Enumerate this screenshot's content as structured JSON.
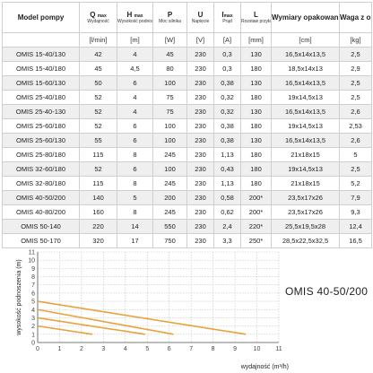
{
  "table": {
    "headers": {
      "model": "Model pompy",
      "q": {
        "sym": "Q",
        "sub": "max",
        "desc": "Wydajność"
      },
      "h": {
        "sym": "H",
        "sub": "max",
        "desc": "Wysokość podnoszenia"
      },
      "p": {
        "sym": "P",
        "sub": "",
        "desc": "Moc silnika"
      },
      "u": {
        "sym": "U",
        "sub": "",
        "desc": "Napięcie"
      },
      "i": {
        "sym": "I",
        "sub": "max",
        "desc": "Prąd"
      },
      "l": {
        "sym": "L",
        "sub": "",
        "desc": "Rozstaw przyłączy"
      },
      "dims": "Wymiary opakowania",
      "weight": "Waga z opak."
    },
    "units": [
      "[l/min]",
      "[m]",
      "[W]",
      "[V]",
      "[A]",
      "[mm]",
      "[cm]",
      "[kg]"
    ],
    "rows": [
      [
        "OMIS 15-40/130",
        "42",
        "4",
        "45",
        "230",
        "0,3",
        "130",
        "16,5x14x13,5",
        "2,5"
      ],
      [
        "OMIS 15-40/180",
        "45",
        "4,5",
        "80",
        "230",
        "0,3",
        "180",
        "18,5x14x13",
        "2,9"
      ],
      [
        "OMIS 15-60/130",
        "50",
        "6",
        "100",
        "230",
        "0,38",
        "130",
        "16,5x14x13,5",
        "2,5"
      ],
      [
        "OMIS 25-40/180",
        "52",
        "4",
        "75",
        "230",
        "0,32",
        "180",
        "19x14,5x13",
        "2,5"
      ],
      [
        "OMIS 25-40-130",
        "52",
        "4",
        "75",
        "230",
        "0,32",
        "130",
        "16,5x14x13,5",
        "2,6"
      ],
      [
        "OMIS 25-60/180",
        "52",
        "6",
        "100",
        "230",
        "0,38",
        "180",
        "19x14,5x13",
        "2,53"
      ],
      [
        "OMIS 25-60/130",
        "55",
        "6",
        "100",
        "230",
        "0,38",
        "130",
        "16,5x14x13,5",
        "2,6"
      ],
      [
        "OMIS 25-80/180",
        "115",
        "8",
        "245",
        "230",
        "1,13",
        "180",
        "21x18x15",
        "5"
      ],
      [
        "OMIS 32-60/180",
        "52",
        "6",
        "100",
        "230",
        "0,43",
        "180",
        "19x14,5x13",
        "2,5"
      ],
      [
        "OMIS 32-80/180",
        "115",
        "8",
        "245",
        "230",
        "1,13",
        "180",
        "21x18x15",
        "5,2"
      ],
      [
        "OMIS 40-50/200",
        "140",
        "5",
        "200",
        "230",
        "0,58",
        "200*",
        "23,5x17x26",
        "7,9"
      ],
      [
        "OMIS 40-80/200",
        "160",
        "8",
        "245",
        "230",
        "0,62",
        "200*",
        "23,5x17x26",
        "9,3"
      ],
      [
        "OMIS 50-140",
        "220",
        "14",
        "550",
        "230",
        "2,4",
        "220*",
        "25,5x19,5x28",
        "12,4"
      ],
      [
        "OMIS 50-170",
        "320",
        "17",
        "750",
        "230",
        "3,3",
        "250*",
        "28,5x22,5x32,5",
        "16,5"
      ]
    ]
  },
  "model_label": "OMIS 40-50/200",
  "chart_data": {
    "type": "line",
    "xlabel": "wydajność (m³/h)",
    "ylabel": "wysokość podnoszenia (m)",
    "xlim": [
      0,
      11
    ],
    "ylim": [
      0,
      11
    ],
    "x_ticks": [
      "0",
      "1",
      "2",
      "3",
      "4",
      "5",
      "6",
      "7",
      "8",
      "9",
      "10",
      "11"
    ],
    "y_ticks": [
      "0",
      "1",
      "2",
      "3",
      "4",
      "5",
      "6",
      "7",
      "8",
      "9",
      "10",
      "11"
    ],
    "grid": true,
    "color": "#e8a33a",
    "series": [
      {
        "x": [
          0,
          9.5
        ],
        "y": [
          5,
          1
        ]
      },
      {
        "x": [
          0,
          6.2
        ],
        "y": [
          4,
          1
        ]
      },
      {
        "x": [
          0,
          4.9
        ],
        "y": [
          3,
          1
        ]
      },
      {
        "x": [
          0,
          2.5
        ],
        "y": [
          2,
          1
        ]
      }
    ]
  }
}
